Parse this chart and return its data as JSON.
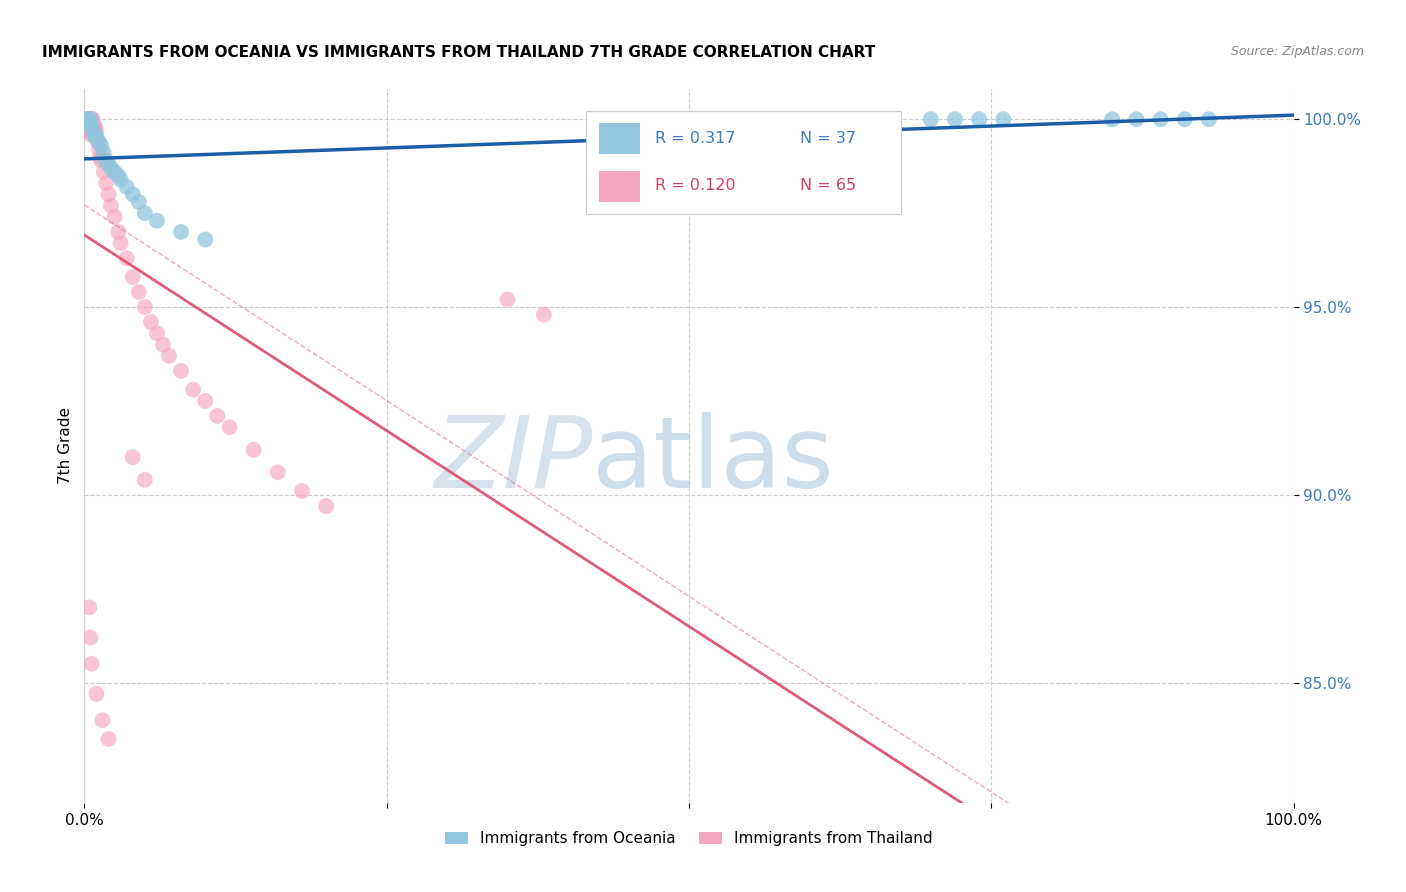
{
  "title": "IMMIGRANTS FROM OCEANIA VS IMMIGRANTS FROM THAILAND 7TH GRADE CORRELATION CHART",
  "source": "Source: ZipAtlas.com",
  "ylabel": "7th Grade",
  "legend_label_blue": "Immigrants from Oceania",
  "legend_label_pink": "Immigrants from Thailand",
  "color_blue": "#92c5de",
  "color_pink": "#f4a6bf",
  "line_color_blue": "#1a5fa8",
  "line_color_pink": "#e05b78",
  "xmin": 0.0,
  "xmax": 1.0,
  "ymin": 0.818,
  "ymax": 1.008,
  "y_ticks": [
    0.85,
    0.9,
    0.95,
    1.0
  ],
  "y_tick_labels": [
    "85.0%",
    "90.0%",
    "95.0%",
    "100.0%"
  ],
  "blue_x": [
    0.001,
    0.002,
    0.003,
    0.003,
    0.004,
    0.005,
    0.005,
    0.006,
    0.007,
    0.008,
    0.009,
    0.01,
    0.012,
    0.014,
    0.016,
    0.018,
    0.02,
    0.022,
    0.025,
    0.028,
    0.03,
    0.035,
    0.04,
    0.045,
    0.05,
    0.06,
    0.08,
    0.1,
    0.7,
    0.72,
    0.74,
    0.76,
    0.85,
    0.87,
    0.89,
    0.91,
    0.93
  ],
  "blue_y": [
    1.0,
    1.0,
    1.0,
    0.999,
    1.0,
    1.0,
    0.999,
    0.998,
    0.997,
    0.996,
    0.996,
    0.995,
    0.994,
    0.993,
    0.991,
    0.989,
    0.988,
    0.987,
    0.986,
    0.985,
    0.984,
    0.982,
    0.98,
    0.978,
    0.975,
    0.973,
    0.97,
    0.968,
    1.0,
    1.0,
    1.0,
    1.0,
    1.0,
    1.0,
    1.0,
    1.0,
    1.0
  ],
  "pink_x": [
    0.001,
    0.001,
    0.002,
    0.002,
    0.002,
    0.003,
    0.003,
    0.003,
    0.003,
    0.004,
    0.004,
    0.004,
    0.005,
    0.005,
    0.005,
    0.005,
    0.006,
    0.006,
    0.007,
    0.007,
    0.007,
    0.008,
    0.008,
    0.009,
    0.009,
    0.01,
    0.01,
    0.011,
    0.012,
    0.013,
    0.014,
    0.016,
    0.018,
    0.02,
    0.022,
    0.025,
    0.028,
    0.03,
    0.035,
    0.04,
    0.045,
    0.05,
    0.055,
    0.06,
    0.065,
    0.07,
    0.08,
    0.09,
    0.1,
    0.11,
    0.12,
    0.14,
    0.16,
    0.18,
    0.2,
    0.04,
    0.05,
    0.35,
    0.38,
    0.004,
    0.005,
    0.006,
    0.01,
    0.015,
    0.02
  ],
  "pink_y": [
    1.0,
    0.999,
    1.0,
    0.999,
    0.998,
    1.0,
    0.999,
    0.998,
    0.997,
    1.0,
    0.999,
    0.997,
    1.0,
    0.999,
    0.997,
    0.996,
    1.0,
    0.998,
    1.0,
    0.998,
    0.996,
    0.998,
    0.997,
    0.998,
    0.996,
    0.997,
    0.995,
    0.994,
    0.992,
    0.99,
    0.989,
    0.986,
    0.983,
    0.98,
    0.977,
    0.974,
    0.97,
    0.967,
    0.963,
    0.958,
    0.954,
    0.95,
    0.946,
    0.943,
    0.94,
    0.937,
    0.933,
    0.928,
    0.925,
    0.921,
    0.918,
    0.912,
    0.906,
    0.901,
    0.897,
    0.91,
    0.904,
    0.952,
    0.948,
    0.87,
    0.862,
    0.855,
    0.847,
    0.84,
    0.835
  ]
}
